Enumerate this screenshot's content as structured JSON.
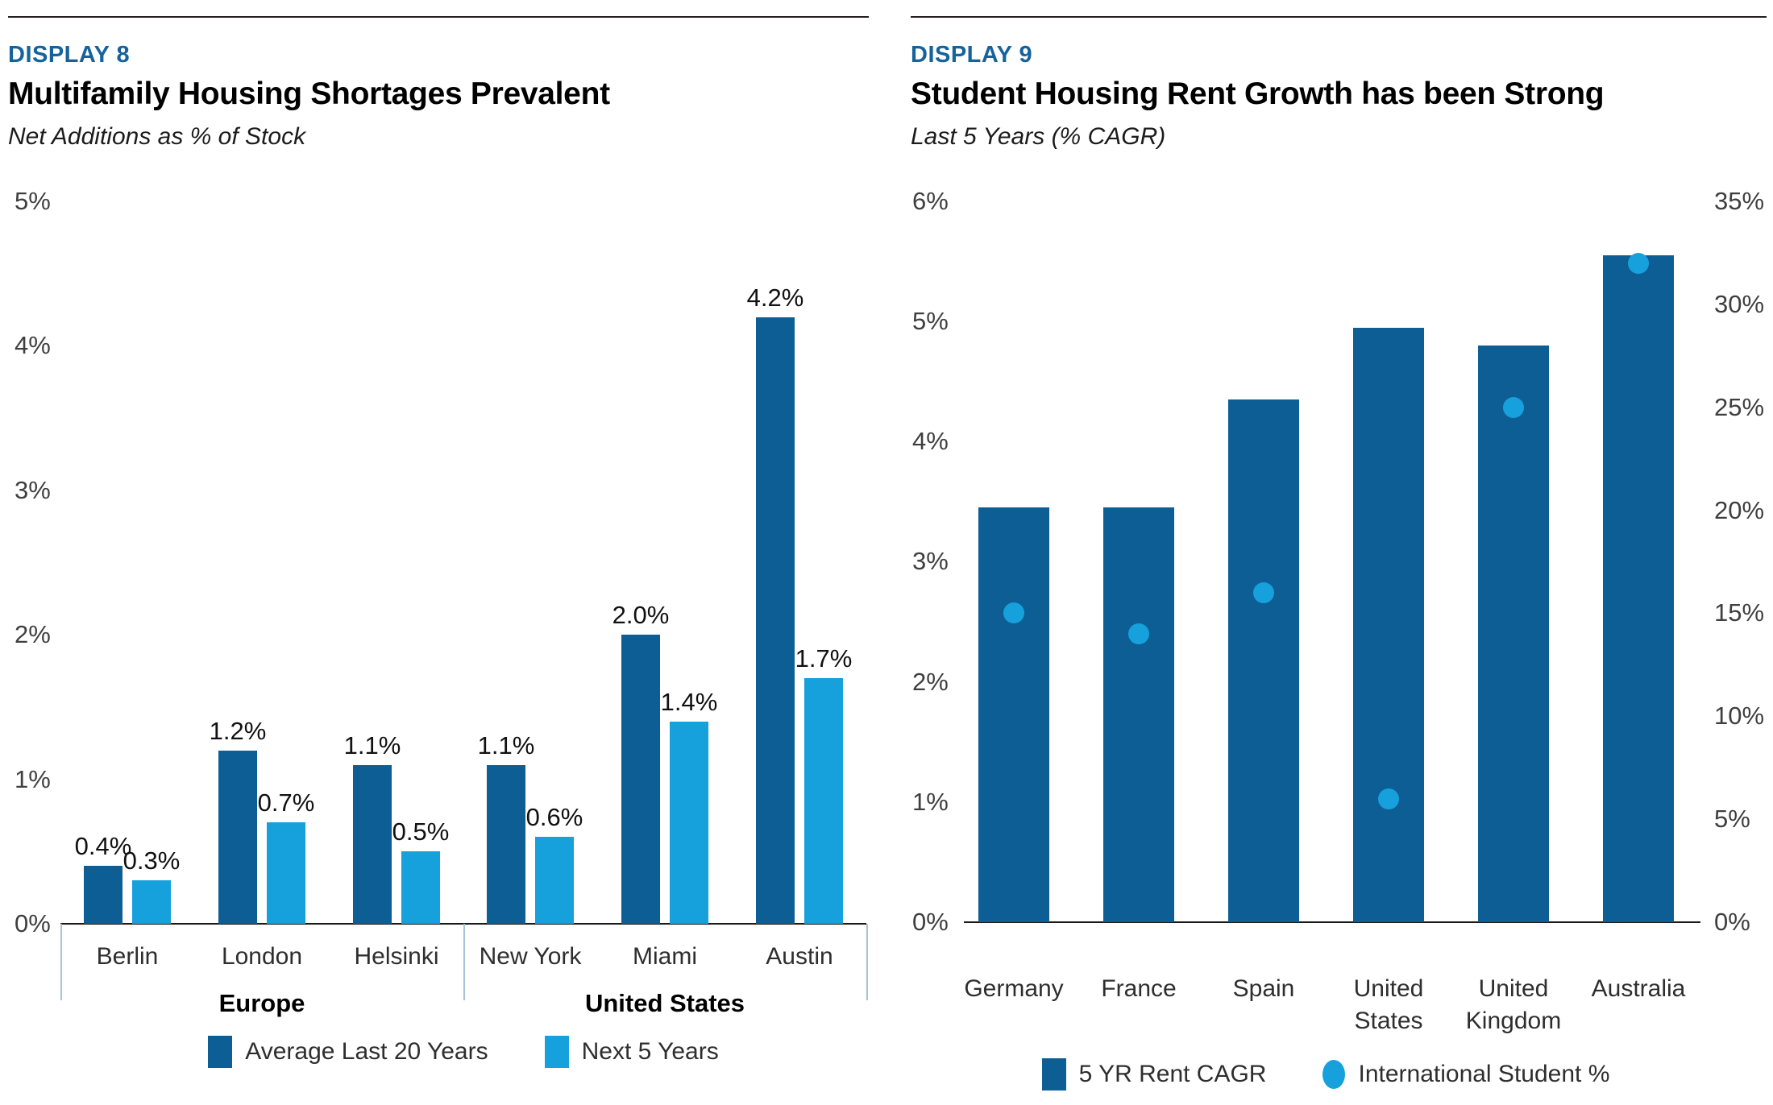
{
  "page": {
    "kind": "report-figure-pair"
  },
  "colors": {
    "dark_blue": "#0d5e94",
    "light_blue": "#16a1dc",
    "header_blue": "#15639d",
    "bracket_blue": "#a6c3d7",
    "axis_black": "#1a1a1a"
  },
  "chart_data": [
    {
      "type": "bar",
      "display_label": "DISPLAY 8",
      "title": "Multifamily Housing Shortages Prevalent",
      "subtitle": "Net Additions as % of Stock",
      "categories": [
        "Berlin",
        "London",
        "Helsinki",
        "New York",
        "Miami",
        "Austin"
      ],
      "groups": [
        {
          "label": "Europe",
          "start": 0,
          "end": 2
        },
        {
          "label": "United States",
          "start": 3,
          "end": 5
        }
      ],
      "series": [
        {
          "name": "Average Last 20 Years",
          "color": "#0d5e94",
          "values": [
            0.4,
            1.2,
            1.1,
            1.1,
            2.0,
            4.2
          ]
        },
        {
          "name": "Next 5 Years",
          "color": "#16a1dc",
          "values": [
            0.3,
            0.7,
            0.5,
            0.6,
            1.4,
            1.7
          ]
        }
      ],
      "data_labels": [
        "0.4%",
        "1.2%",
        "1.1%",
        "1.1%",
        "2.0%",
        "4.2%",
        "0.3%",
        "0.7%",
        "0.5%",
        "0.6%",
        "1.4%",
        "1.7%"
      ],
      "ylim": [
        0,
        5
      ],
      "yticks": [
        "0%",
        "1%",
        "2%",
        "3%",
        "4%",
        "5%"
      ],
      "grid": false,
      "legend_position": "bottom"
    },
    {
      "type": "bar+scatter",
      "display_label": "DISPLAY 9",
      "title": "Student Housing Rent Growth has been Strong",
      "subtitle": "Last 5 Years (% CAGR)",
      "categories": [
        "Germany",
        "France",
        "Spain",
        "United States",
        "United Kingdom",
        "Australia"
      ],
      "bar_series": {
        "name": "5 YR Rent CAGR",
        "axis": "left",
        "color": "#0d5e94",
        "values": [
          3.45,
          3.45,
          4.35,
          4.95,
          4.8,
          5.55
        ]
      },
      "scatter_series": {
        "name": "International Student %",
        "axis": "right",
        "color": "#16a1dc",
        "values": [
          15,
          14,
          16,
          6,
          25,
          32
        ]
      },
      "left_axis": {
        "lim": [
          0,
          6
        ],
        "ticks": [
          "0%",
          "1%",
          "2%",
          "3%",
          "4%",
          "5%",
          "6%"
        ]
      },
      "right_axis": {
        "lim": [
          0,
          35
        ],
        "ticks": [
          "0%",
          "5%",
          "10%",
          "15%",
          "20%",
          "25%",
          "30%",
          "35%"
        ]
      },
      "grid": false,
      "legend_position": "bottom"
    }
  ]
}
